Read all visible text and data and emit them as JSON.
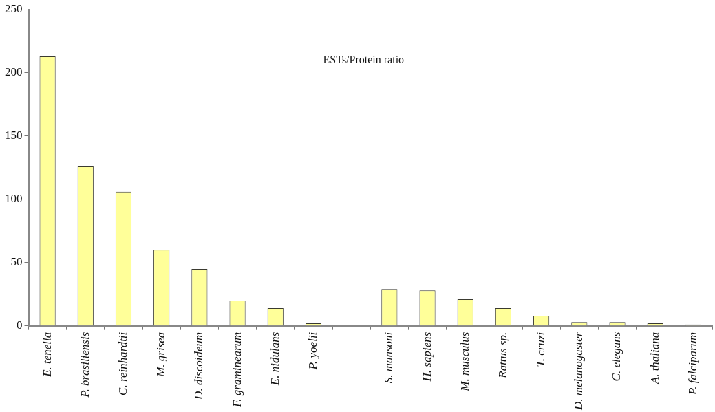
{
  "chart_data": {
    "type": "bar",
    "annotations": [
      "ESTs/Protein ratio"
    ],
    "categories": [
      "E. tenella",
      "P. brasiliensis",
      "C. reinhardtii",
      "M. grisea",
      "D. discoideum",
      "F. graminearum",
      "E. nidulans",
      "P. yoelii",
      null,
      "S. mansoni",
      "H. sapiens",
      "M. musculus",
      "Rattus sp.",
      "T. cruzi",
      "D. melanogaster",
      "C. elegans",
      "A. thaliana",
      "P. falciparum"
    ],
    "values": [
      213,
      126,
      106,
      60,
      45,
      20,
      14,
      2,
      null,
      29,
      28,
      21,
      14,
      8,
      3,
      3,
      2,
      1
    ],
    "color": "#ffff99",
    "ylim": [
      0,
      250
    ],
    "yticks": [
      0,
      50,
      100,
      150,
      200,
      250
    ],
    "grid": false,
    "legend": false
  }
}
